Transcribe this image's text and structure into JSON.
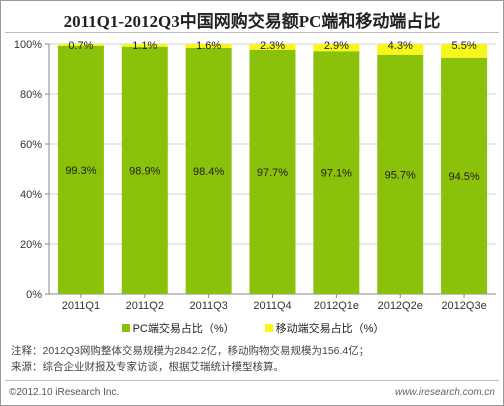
{
  "title": "2011Q1-2012Q3中国网购交易额PC端和移动端占比",
  "legend": {
    "pc_label": "PC端交易占比（%）",
    "mobile_label": "移动端交易占比（%）"
  },
  "notes": {
    "line1": "注释：2012Q3网购整体交易规模为2842.2亿，移动购物交易规模为156.4亿；",
    "line2": "来源：综合企业财报及专家访谈，根据艾瑞统计模型核算。"
  },
  "footer": {
    "copyright": "©2012.10 iResearch Inc.",
    "url": "www.iresearch.com.cn"
  },
  "colors": {
    "pc": "#8ac10a",
    "mobile": "#f7f71a",
    "grid": "#d0d0d0",
    "axis": "#888888"
  },
  "chart_data": {
    "type": "bar",
    "stacked": true,
    "categories": [
      "2011Q1",
      "2011Q2",
      "2011Q3",
      "2011Q4",
      "2012Q1e",
      "2012Q2e",
      "2012Q3e"
    ],
    "series": [
      {
        "name": "PC端交易占比（%）",
        "values": [
          99.3,
          98.9,
          98.4,
          97.7,
          97.1,
          95.7,
          94.5
        ],
        "labels": [
          "99.3%",
          "98.9%",
          "98.4%",
          "97.7%",
          "97.1%",
          "95.7%",
          "94.5%"
        ]
      },
      {
        "name": "移动端交易占比（%）",
        "values": [
          0.7,
          1.1,
          1.6,
          2.3,
          2.9,
          4.3,
          5.5
        ],
        "labels": [
          "0.7%",
          "1.1%",
          "1.6%",
          "2.3%",
          "2.9%",
          "4.3%",
          "5.5%"
        ]
      }
    ],
    "yticks": [
      "0%",
      "20%",
      "40%",
      "60%",
      "80%",
      "100%"
    ],
    "ylim": [
      0,
      100
    ],
    "grid": true,
    "legend_position": "bottom"
  }
}
